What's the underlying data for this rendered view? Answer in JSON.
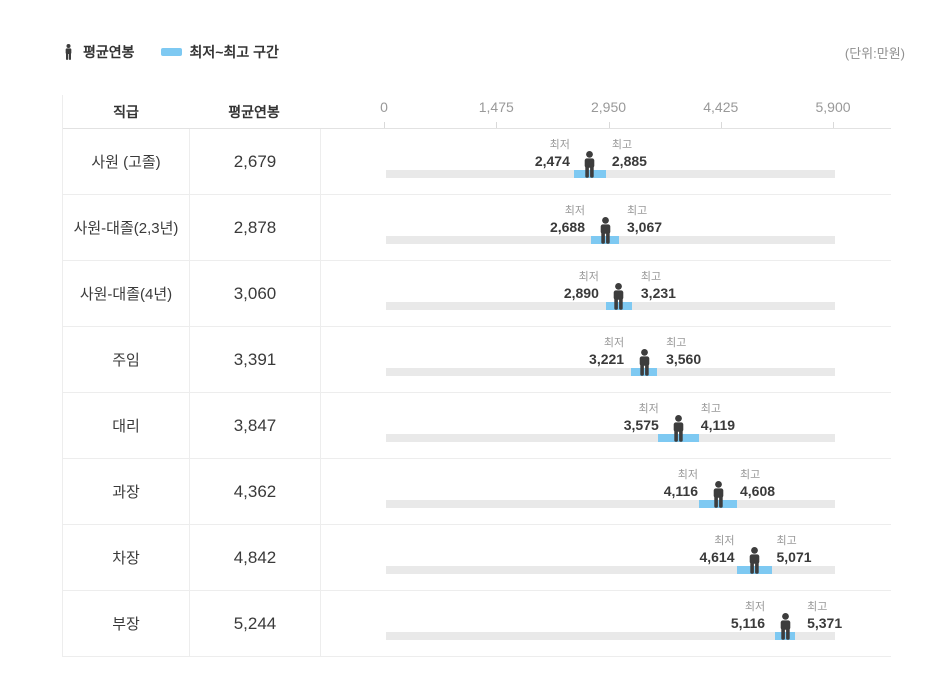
{
  "legend": {
    "avg_label": "평균연봉",
    "range_label": "최저~최고 구간"
  },
  "unit_label": "(단위:만원)",
  "table_header": {
    "position": "직급",
    "average": "평균연봉"
  },
  "range_labels": {
    "min": "최저",
    "max": "최고"
  },
  "axis": {
    "tick_values": [
      0,
      1475,
      2950,
      4425,
      5900
    ],
    "tick_labels": [
      "0",
      "1,475",
      "2,950",
      "4,425",
      "5,900"
    ],
    "min": 0,
    "max": 5900
  },
  "colors": {
    "range_bar": "#7ec9f2",
    "track": "#e9e9e9",
    "icon": "#3d3d3d",
    "text_dark": "#3a3a3a",
    "text_gray": "#999999"
  },
  "chart_data": {
    "type": "bar",
    "categories": [
      "사원 (고졸)",
      "사원-대졸(2,3년)",
      "사원-대졸(4년)",
      "주임",
      "대리",
      "과장",
      "차장",
      "부장"
    ],
    "series": [
      {
        "name": "평균연봉",
        "values": [
          2679,
          2878,
          3060,
          3391,
          3847,
          4362,
          4842,
          5244
        ]
      },
      {
        "name": "최저",
        "values": [
          2474,
          2688,
          2890,
          3221,
          3575,
          4116,
          4614,
          5116
        ]
      },
      {
        "name": "최고",
        "values": [
          2885,
          3067,
          3231,
          3560,
          4119,
          4608,
          5071,
          5371
        ]
      }
    ],
    "xlabel": "",
    "ylabel": "",
    "xlim": [
      0,
      5900
    ],
    "x_ticks": [
      0,
      1475,
      2950,
      4425,
      5900
    ],
    "unit": "만원",
    "legend_position": "top",
    "grid": false
  }
}
